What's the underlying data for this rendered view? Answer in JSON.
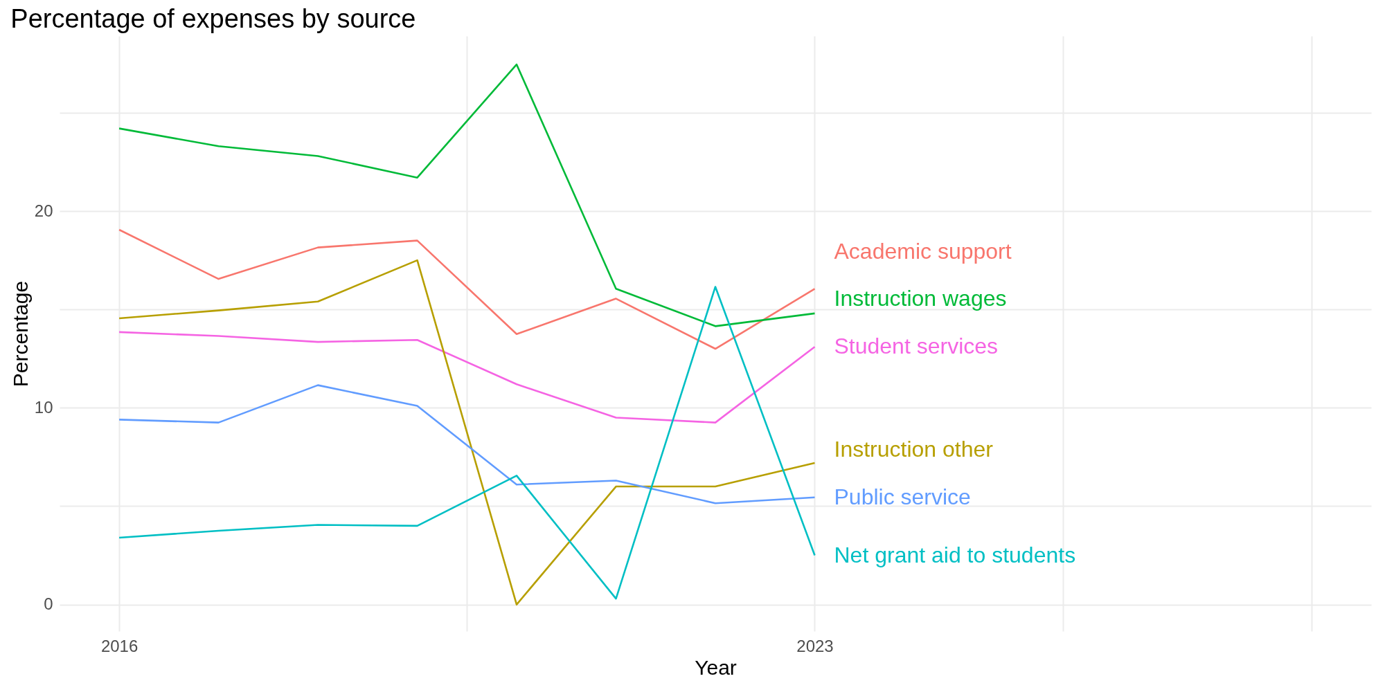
{
  "chart_data": {
    "type": "line",
    "title": "Percentage of expenses by source",
    "xlabel": "Year",
    "ylabel": "Percentage",
    "x": [
      2016,
      2017,
      2018,
      2019,
      2020,
      2021,
      2022,
      2023
    ],
    "series": [
      {
        "name": "Academic support",
        "color": "#f8766d",
        "values": [
          19.05,
          16.55,
          18.15,
          18.5,
          13.75,
          15.55,
          13.0,
          16.05
        ]
      },
      {
        "name": "Instruction wages",
        "color": "#00ba38",
        "values": [
          24.2,
          23.3,
          22.8,
          21.7,
          27.45,
          16.05,
          14.15,
          14.8
        ]
      },
      {
        "name": "Student services",
        "color": "#f564e3",
        "values": [
          13.85,
          13.65,
          13.35,
          13.45,
          11.2,
          9.5,
          9.25,
          13.1
        ]
      },
      {
        "name": "Instruction other",
        "color": "#b79f00",
        "values": [
          14.55,
          14.95,
          15.4,
          17.5,
          0,
          6.0,
          6.0,
          7.2
        ]
      },
      {
        "name": "Public service",
        "color": "#619cff",
        "values": [
          9.4,
          9.25,
          11.15,
          10.1,
          6.1,
          6.3,
          5.15,
          5.45
        ]
      },
      {
        "name": "Net grant aid to students",
        "color": "#00bfc4",
        "values": [
          3.4,
          3.75,
          4.05,
          4.0,
          6.55,
          0.3,
          16.15,
          2.5
        ]
      }
    ],
    "xlim": [
      2015.4,
      2028.6
    ],
    "xticks": [
      2016,
      {
        "value": 2019.5,
        "label": null
      },
      2023,
      {
        "value": 2025.5,
        "label": null
      },
      {
        "value": 2028,
        "label": null
      }
    ],
    "ylim": [
      -1.35,
      28.9
    ],
    "yticks": [
      0,
      {
        "value": 5,
        "label": null
      },
      10,
      {
        "value": 15,
        "label": null
      },
      20,
      {
        "value": 25,
        "label": null
      }
    ],
    "grid": true,
    "legend": false,
    "marker": "none",
    "line_style": "solid"
  }
}
